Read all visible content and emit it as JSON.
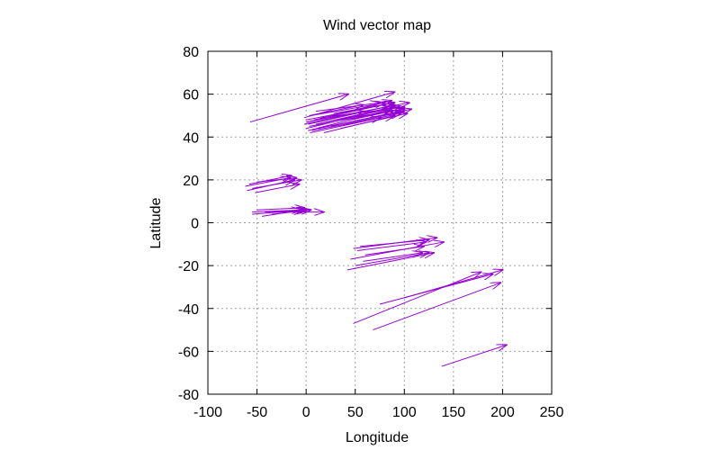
{
  "chart_data": {
    "type": "vector-field",
    "title": "Wind vector map",
    "xlabel": "Longitude",
    "ylabel": "Latitude",
    "xlim": [
      -100,
      250
    ],
    "ylim": [
      -80,
      80
    ],
    "xticks": [
      -100,
      -50,
      0,
      50,
      100,
      150,
      200,
      250
    ],
    "yticks": [
      -80,
      -60,
      -40,
      -20,
      0,
      20,
      40,
      60,
      80
    ],
    "grid": true,
    "legend": "none",
    "series": [
      {
        "color": "#9400D3",
        "vectors": [
          {
            "x": -57,
            "y": 47,
            "dx": 100,
            "dy": 13
          },
          {
            "x": -2,
            "y": 49,
            "dx": 92,
            "dy": 12
          },
          {
            "x": 0,
            "y": 48,
            "dx": 90,
            "dy": 8
          },
          {
            "x": 1,
            "y": 47,
            "dx": 86,
            "dy": 10
          },
          {
            "x": 2,
            "y": 46,
            "dx": 88,
            "dy": 9
          },
          {
            "x": 3,
            "y": 45,
            "dx": 82,
            "dy": 7
          },
          {
            "x": 0,
            "y": 44,
            "dx": 90,
            "dy": 10
          },
          {
            "x": 2,
            "y": 43,
            "dx": 85,
            "dy": 10
          },
          {
            "x": 4,
            "y": 42,
            "dx": 92,
            "dy": 9
          },
          {
            "x": 5,
            "y": 50,
            "dx": 75,
            "dy": 6
          },
          {
            "x": 8,
            "y": 48,
            "dx": 80,
            "dy": 8
          },
          {
            "x": 10,
            "y": 46,
            "dx": 78,
            "dy": 8
          },
          {
            "x": 0,
            "y": 47,
            "dx": 105,
            "dy": 9
          },
          {
            "x": 15,
            "y": 49,
            "dx": 85,
            "dy": 5
          },
          {
            "x": 20,
            "y": 47,
            "dx": 75,
            "dy": 7
          },
          {
            "x": 12,
            "y": 44,
            "dx": 95,
            "dy": 9
          },
          {
            "x": 25,
            "y": 45,
            "dx": 70,
            "dy": 7
          },
          {
            "x": 30,
            "y": 48,
            "dx": 70,
            "dy": 5
          },
          {
            "x": 3,
            "y": 50,
            "dx": 55,
            "dy": 5
          },
          {
            "x": 6,
            "y": 43,
            "dx": 70,
            "dy": 6
          },
          {
            "x": -2,
            "y": 46,
            "dx": 60,
            "dy": 6
          },
          {
            "x": 40,
            "y": 46,
            "dx": 60,
            "dy": 6
          },
          {
            "x": 35,
            "y": 44,
            "dx": 68,
            "dy": 7
          },
          {
            "x": 18,
            "y": 42,
            "dx": 72,
            "dy": 8
          },
          {
            "x": 45,
            "y": 48,
            "dx": 52,
            "dy": 5
          },
          {
            "x": 28,
            "y": 51,
            "dx": 62,
            "dy": 5
          },
          {
            "x": 10,
            "y": 52,
            "dx": 65,
            "dy": 4
          },
          {
            "x": -62,
            "y": 17,
            "dx": 46,
            "dy": 4
          },
          {
            "x": -60,
            "y": 15,
            "dx": 48,
            "dy": 5
          },
          {
            "x": -58,
            "y": 18,
            "dx": 43,
            "dy": 4
          },
          {
            "x": -55,
            "y": 16,
            "dx": 50,
            "dy": 4
          },
          {
            "x": -52,
            "y": 14,
            "dx": 45,
            "dy": 4
          },
          {
            "x": -50,
            "y": 19,
            "dx": 40,
            "dy": 2
          },
          {
            "x": -55,
            "y": 5,
            "dx": 50,
            "dy": 1
          },
          {
            "x": -55,
            "y": 4,
            "dx": 55,
            "dy": 2
          },
          {
            "x": -50,
            "y": 6,
            "dx": 48,
            "dy": 1
          },
          {
            "x": -45,
            "y": 3,
            "dx": 42,
            "dy": 3
          },
          {
            "x": -42,
            "y": 5,
            "dx": 44,
            "dy": 1
          },
          {
            "x": -35,
            "y": 4,
            "dx": 40,
            "dy": 2
          },
          {
            "x": -30,
            "y": 5,
            "dx": 48,
            "dy": 0
          },
          {
            "x": 48,
            "y": -12,
            "dx": 85,
            "dy": 5
          },
          {
            "x": 52,
            "y": -13,
            "dx": 70,
            "dy": 4
          },
          {
            "x": 55,
            "y": -11,
            "dx": 70,
            "dy": 3
          },
          {
            "x": 45,
            "y": -17,
            "dx": 95,
            "dy": 8
          },
          {
            "x": 60,
            "y": -15,
            "dx": 60,
            "dy": 4
          },
          {
            "x": 42,
            "y": -22,
            "dx": 88,
            "dy": 8
          },
          {
            "x": 50,
            "y": -20,
            "dx": 75,
            "dy": 6
          },
          {
            "x": 58,
            "y": -18,
            "dx": 60,
            "dy": 4
          },
          {
            "x": 48,
            "y": -47,
            "dx": 130,
            "dy": 24
          },
          {
            "x": 75,
            "y": -38,
            "dx": 115,
            "dy": 14
          },
          {
            "x": 68,
            "y": -50,
            "dx": 130,
            "dy": 22
          },
          {
            "x": 100,
            "y": -35,
            "dx": 100,
            "dy": 13
          },
          {
            "x": 138,
            "y": -67,
            "dx": 66,
            "dy": 10
          }
        ]
      }
    ]
  }
}
